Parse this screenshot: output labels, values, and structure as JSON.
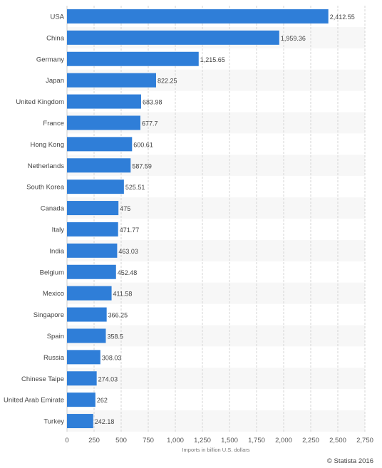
{
  "chart_data": {
    "type": "bar",
    "orientation": "horizontal",
    "categories": [
      "USA",
      "China",
      "Germany",
      "Japan",
      "United Kingdom",
      "France",
      "Hong Kong",
      "Netherlands",
      "South Korea",
      "Canada",
      "Italy",
      "India",
      "Belgium",
      "Mexico",
      "Singapore",
      "Spain",
      "Russia",
      "Chinese Taipe",
      "United Arab Emirate",
      "Turkey"
    ],
    "values": [
      2412.55,
      1959.36,
      1215.65,
      822.25,
      683.98,
      677.7,
      600.61,
      587.59,
      525.51,
      475,
      471.77,
      463.03,
      452.48,
      411.58,
      366.25,
      358.5,
      308.03,
      274.03,
      262,
      242.18
    ],
    "value_labels": [
      "2,412.55",
      "1,959.36",
      "1,215.65",
      "822.25",
      "683.98",
      "677.7",
      "600.61",
      "587.59",
      "525.51",
      "475",
      "471.77",
      "463.03",
      "452.48",
      "411.58",
      "366.25",
      "358.5",
      "308.03",
      "274.03",
      "262",
      "242.18"
    ],
    "xticks": [
      0,
      250,
      500,
      750,
      1000,
      1250,
      1500,
      1750,
      2000,
      2250,
      2500,
      2750
    ],
    "xtick_labels": [
      "0",
      "250",
      "500",
      "750",
      "1,000",
      "1,250",
      "1,500",
      "1,750",
      "2,000",
      "2,250",
      "2,500",
      "2,750"
    ],
    "xlim": [
      0,
      2750
    ],
    "xlabel": "Imports in billion U.S. dollars",
    "ylabel": "",
    "title": "",
    "grid": "vertical dashed",
    "bar_color": "#2f7ed8",
    "stripe_color": "#f7f7f7"
  },
  "footer": {
    "credit": "© Statista 2016"
  }
}
